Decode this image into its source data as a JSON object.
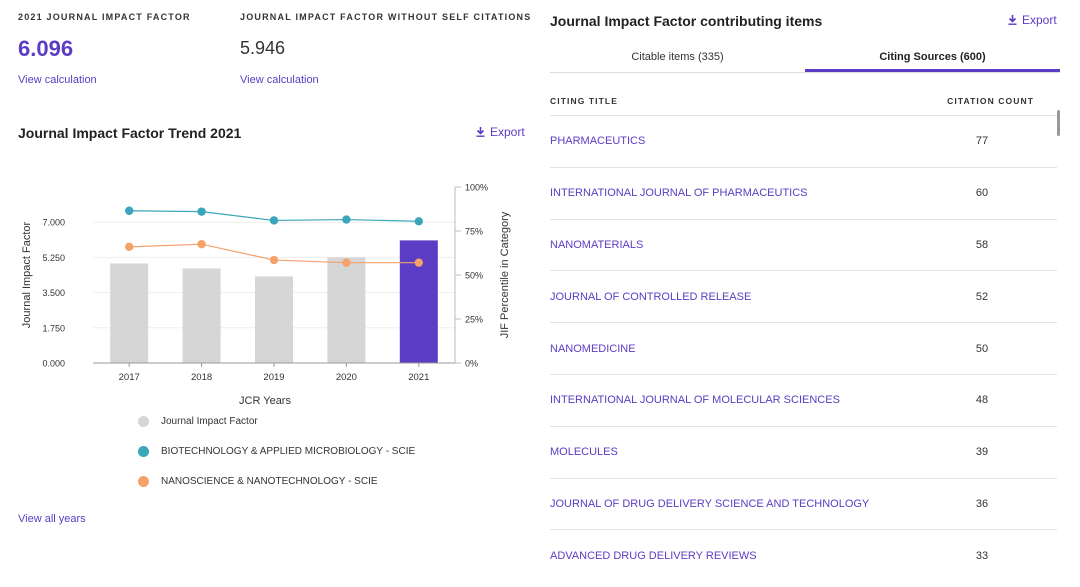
{
  "kpis": {
    "jif_label": "2021 JOURNAL IMPACT FACTOR",
    "jif_value": "6.096",
    "jif_link": "View calculation",
    "nsc_label": "JOURNAL IMPACT FACTOR WITHOUT SELF CITATIONS",
    "nsc_value": "5.946",
    "nsc_link": "View calculation"
  },
  "trend": {
    "title": "Journal Impact Factor Trend 2021",
    "export_label": "Export",
    "view_all": "View all years"
  },
  "colors": {
    "accent": "#5b3cc4",
    "bar": "#d6d6d6",
    "teal": "#3aa6b9",
    "orange": "#f4a26a"
  },
  "chart_data": {
    "type": "bar",
    "categories": [
      "2017",
      "2018",
      "2019",
      "2020",
      "2021"
    ],
    "xlabel": "JCR Years",
    "ylabel": "Journal Impact Factor",
    "y2label": "JIF Percentile in Category",
    "ylim": [
      0,
      8.75
    ],
    "yticks": [
      "0.000",
      "1.750",
      "3.500",
      "5.250",
      "7.000"
    ],
    "y2lim": [
      0,
      100
    ],
    "y2ticks": [
      "0%",
      "25%",
      "50%",
      "75%",
      "100%"
    ],
    "series": [
      {
        "name": "Journal Impact Factor",
        "type": "bar",
        "values": [
          4.95,
          4.7,
          4.3,
          5.25,
          6.096
        ],
        "highlight_index": 4
      },
      {
        "name": "BIOTECHNOLOGY & APPLIED MICROBIOLOGY - SCIE",
        "type": "line",
        "axis": "right",
        "values": [
          86.5,
          86,
          81,
          81.5,
          80.5
        ]
      },
      {
        "name": "NANOSCIENCE & NANOTECHNOLOGY - SCIE",
        "type": "line",
        "axis": "right",
        "values": [
          66,
          67.5,
          58.5,
          57,
          57
        ]
      }
    ]
  },
  "contrib": {
    "title": "Journal Impact Factor contributing items",
    "export_label": "Export",
    "tabs": [
      {
        "label": "Citable items (335)",
        "active": false
      },
      {
        "label": "Citing Sources (600)",
        "active": true
      }
    ],
    "col_title": "CITING TITLE",
    "col_count": "CITATION COUNT",
    "rows": [
      {
        "title": "PHARMACEUTICS",
        "count": "77"
      },
      {
        "title": "INTERNATIONAL JOURNAL OF PHARMACEUTICS",
        "count": "60"
      },
      {
        "title": "NANOMATERIALS",
        "count": "58"
      },
      {
        "title": "JOURNAL OF CONTROLLED RELEASE",
        "count": "52"
      },
      {
        "title": "NANOMEDICINE",
        "count": "50"
      },
      {
        "title": "INTERNATIONAL JOURNAL OF MOLECULAR SCIENCES",
        "count": "48"
      },
      {
        "title": "MOLECULES",
        "count": "39"
      },
      {
        "title": "JOURNAL OF DRUG DELIVERY SCIENCE AND TECHNOLOGY",
        "count": "36"
      },
      {
        "title": "ADVANCED DRUG DELIVERY REVIEWS",
        "count": "33"
      }
    ]
  }
}
